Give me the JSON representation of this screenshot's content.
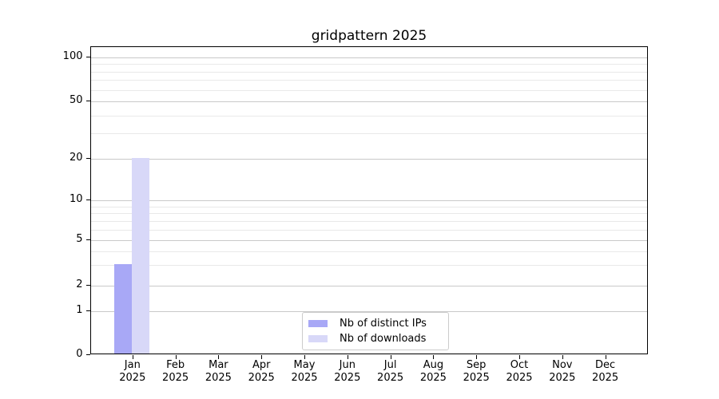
{
  "title": "gridpattern 2025",
  "colors": {
    "distinct_ips": "#a8a8f6",
    "downloads": "#d8d8f8",
    "grid_major": "#c9c9c9",
    "grid_minor": "#e9e9e9",
    "spine": "#000000",
    "legend_border": "#cccccc",
    "background": "#ffffff"
  },
  "y_axis": {
    "tick_labels": [
      "0",
      "1",
      "2",
      "5",
      "10",
      "20",
      "50",
      "100"
    ],
    "tick_values": [
      0,
      1,
      2,
      5,
      10,
      20,
      50,
      100
    ],
    "minor_tick_values": [
      3,
      4,
      6,
      7,
      8,
      9,
      30,
      40,
      60,
      70,
      80,
      90
    ]
  },
  "x_axis": {
    "months": [
      "Jan",
      "Feb",
      "Mar",
      "Apr",
      "May",
      "Jun",
      "Jul",
      "Aug",
      "Sep",
      "Oct",
      "Nov",
      "Dec"
    ],
    "year": "2025"
  },
  "legend": {
    "items": [
      {
        "label": "Nb of distinct IPs",
        "color_key": "distinct_ips"
      },
      {
        "label": "Nb of downloads",
        "color_key": "downloads"
      }
    ]
  },
  "chart_data": {
    "type": "bar",
    "title": "gridpattern 2025",
    "categories": [
      "Jan 2025",
      "Feb 2025",
      "Mar 2025",
      "Apr 2025",
      "May 2025",
      "Jun 2025",
      "Jul 2025",
      "Aug 2025",
      "Sep 2025",
      "Oct 2025",
      "Nov 2025",
      "Dec 2025"
    ],
    "series": [
      {
        "name": "Nb of distinct IPs",
        "color": "#a8a8f6",
        "values": [
          3,
          0,
          0,
          0,
          0,
          0,
          0,
          0,
          0,
          0,
          0,
          0
        ]
      },
      {
        "name": "Nb of downloads",
        "color": "#d8d8f8",
        "values": [
          20,
          0,
          0,
          0,
          0,
          0,
          0,
          0,
          0,
          0,
          0,
          0
        ]
      }
    ],
    "xlabel": "",
    "ylabel": "",
    "yscale": "log-like",
    "yticks": [
      0,
      1,
      2,
      5,
      10,
      20,
      50,
      100
    ],
    "ylim": [
      0,
      110
    ],
    "grid": "horizontal major and minor gridlines",
    "legend_position": "lower center"
  }
}
